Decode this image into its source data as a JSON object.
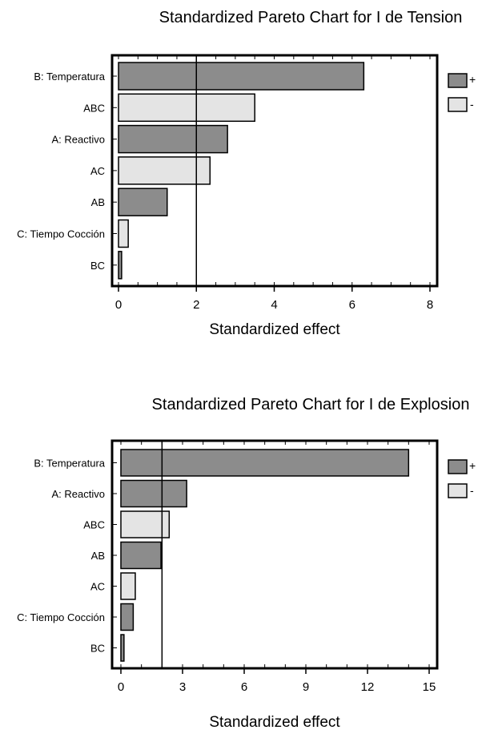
{
  "chart_data": [
    {
      "type": "bar",
      "orientation": "horizontal",
      "title": "Standardized Pareto Chart for I de Tension",
      "xlabel": "Standardized effect",
      "categories": [
        "B: Temperatura",
        "ABC",
        "A: Reactivo",
        "AC",
        "AB",
        "C: Tiempo Cocción",
        "BC"
      ],
      "values": [
        6.3,
        3.5,
        2.8,
        2.35,
        1.25,
        0.25,
        0.08
      ],
      "signs": [
        "+",
        "-",
        "+",
        "-",
        "+",
        "-",
        "+"
      ],
      "xlim": [
        0,
        8
      ],
      "xticks": [
        0,
        2,
        4,
        6,
        8
      ],
      "reference_line": 2.0,
      "legend": [
        "+",
        "-"
      ],
      "legend_position": "right"
    },
    {
      "type": "bar",
      "orientation": "horizontal",
      "title": "Standardized Pareto Chart for I de Explosion",
      "xlabel": "Standardized effect",
      "categories": [
        "B: Temperatura",
        "A: Reactivo",
        "ABC",
        "AB",
        "AC",
        "C: Tiempo Cocción",
        "BC"
      ],
      "values": [
        14.0,
        3.2,
        2.35,
        1.95,
        0.7,
        0.6,
        0.15
      ],
      "signs": [
        "+",
        "+",
        "-",
        "+",
        "-",
        "+",
        "+"
      ],
      "xlim": [
        -0.5,
        15.5
      ],
      "xticks": [
        0,
        3,
        6,
        9,
        12,
        15
      ],
      "reference_line": 2.0,
      "legend": [
        "+",
        "-"
      ],
      "legend_position": "right"
    }
  ],
  "colors": {
    "positive": "#8c8c8c",
    "negative": "#e4e4e4",
    "frame": "#000000"
  }
}
